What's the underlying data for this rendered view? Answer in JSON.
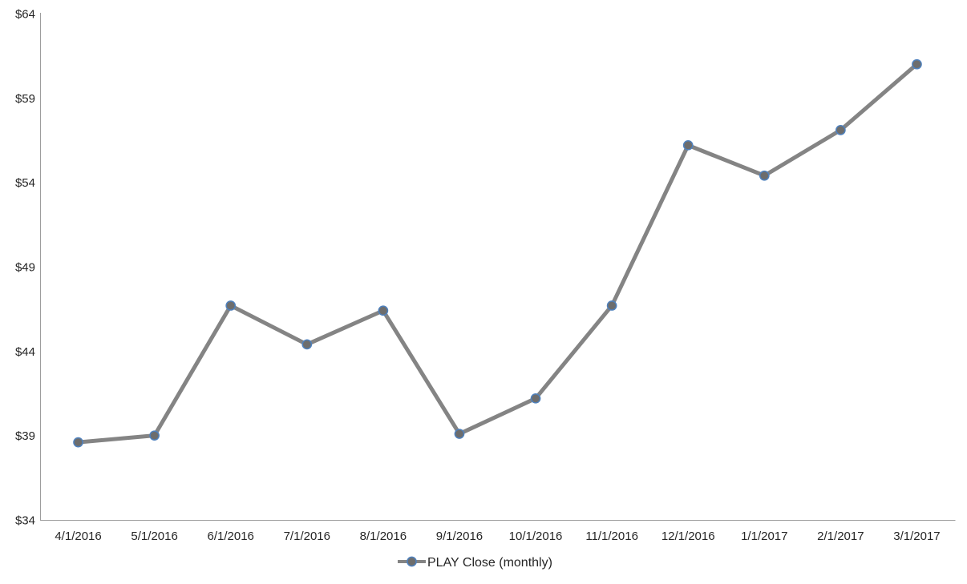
{
  "chart_data": {
    "type": "line",
    "title": "",
    "xlabel": "",
    "ylabel": "",
    "categories": [
      "4/1/2016",
      "5/1/2016",
      "6/1/2016",
      "7/1/2016",
      "8/1/2016",
      "9/1/2016",
      "10/1/2016",
      "11/1/2016",
      "12/1/2016",
      "1/1/2017",
      "2/1/2017",
      "3/1/2017"
    ],
    "series": [
      {
        "name": "PLAY Close (monthly)",
        "values": [
          38.6,
          39.0,
          46.7,
          44.4,
          46.4,
          39.1,
          41.2,
          46.7,
          56.2,
          54.4,
          57.1,
          61.0
        ]
      }
    ],
    "ylim": [
      34,
      64
    ],
    "y_tick_values": [
      64,
      59,
      54,
      49,
      44,
      39,
      34
    ],
    "y_tick_labels": [
      "$64",
      "$59",
      "$54",
      "$49",
      "$44",
      "$39",
      "$34"
    ],
    "grid": false,
    "legend": {
      "label": "PLAY Close (monthly)",
      "position": "bottom"
    },
    "colors": {
      "line": "#848484",
      "marker_fill": "#6d6d6d",
      "marker_border": "#4f81bd",
      "axis": "#9d9d9d",
      "text": "#262626",
      "background": "#ffffff"
    }
  }
}
